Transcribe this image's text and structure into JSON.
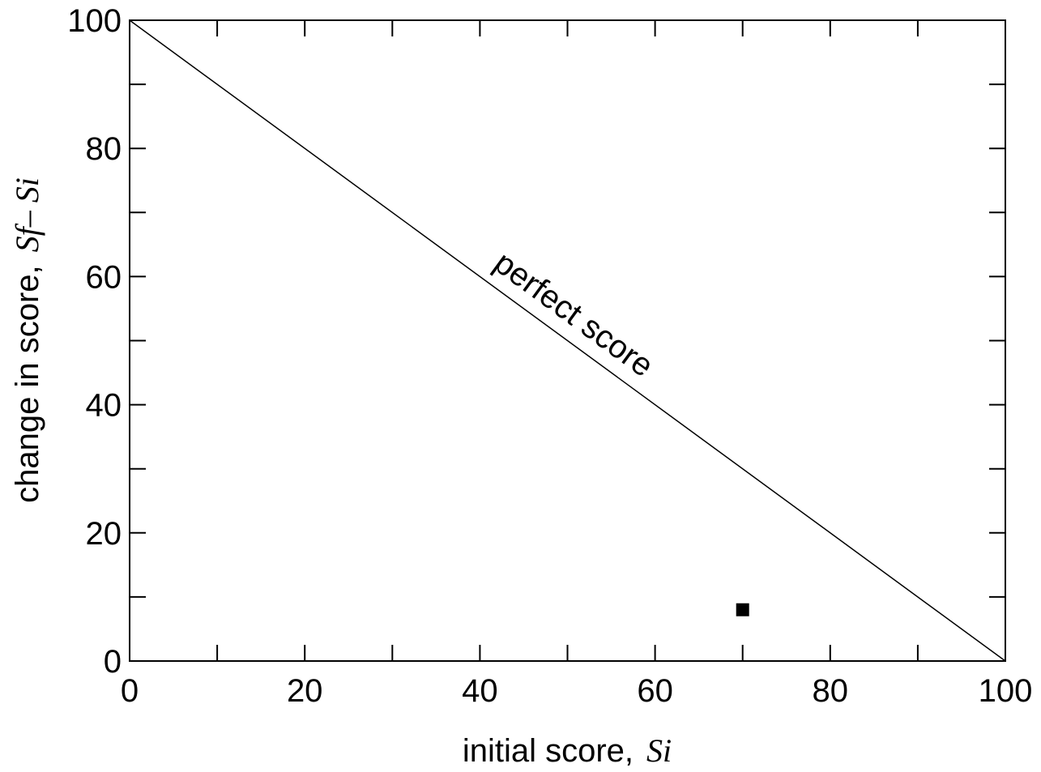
{
  "chart_data": {
    "type": "scatter",
    "title": "",
    "xlabel": "initial score,",
    "xlabel_symbol": "Si",
    "ylabel": "change in score,",
    "ylabel_symbol": "Sf– Si",
    "xlim": [
      0,
      100
    ],
    "ylim": [
      0,
      100
    ],
    "x_ticks": [
      0,
      20,
      40,
      60,
      80,
      100
    ],
    "y_ticks": [
      0,
      20,
      40,
      60,
      80,
      100
    ],
    "x_minor_ticks": [
      10,
      30,
      50,
      70,
      90
    ],
    "y_minor_ticks": [
      10,
      30,
      50,
      70,
      90
    ],
    "grid": false,
    "series": [
      {
        "marker": "square",
        "color": "#000000",
        "points": [
          {
            "x": 70,
            "y": 8
          }
        ]
      }
    ],
    "reference_line": {
      "label": "perfect score",
      "from": {
        "x": 0,
        "y": 100
      },
      "to": {
        "x": 100,
        "y": 0
      }
    }
  }
}
